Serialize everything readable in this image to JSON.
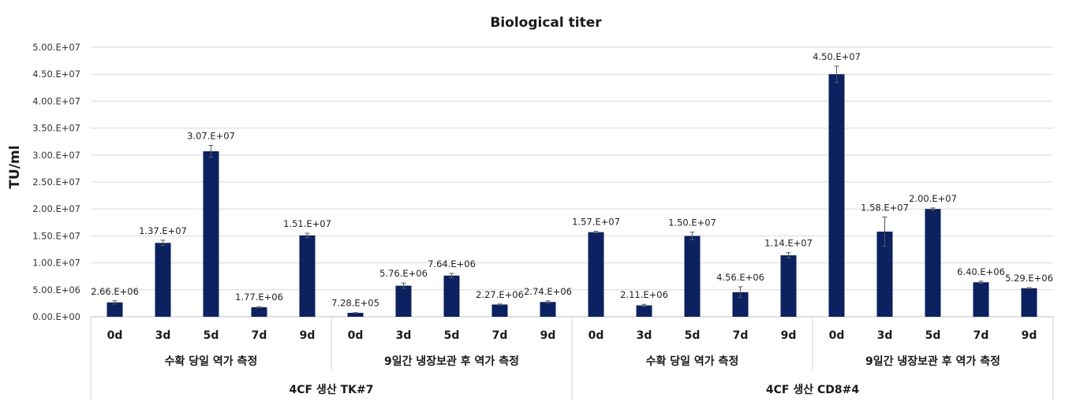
{
  "chart_data": {
    "type": "bar",
    "title": "Biological titer",
    "ylabel": "TU/ml",
    "ylim": [
      0,
      50000000
    ],
    "yticks": [
      {
        "value": 0,
        "label": "0.00.E+00"
      },
      {
        "value": 5000000,
        "label": "5.00.E+06"
      },
      {
        "value": 10000000,
        "label": "1.00.E+07"
      },
      {
        "value": 15000000,
        "label": "1.50.E+07"
      },
      {
        "value": 20000000,
        "label": "2.00.E+07"
      },
      {
        "value": 25000000,
        "label": "2.50.E+07"
      },
      {
        "value": 30000000,
        "label": "3.00.E+07"
      },
      {
        "value": 35000000,
        "label": "3.50.E+07"
      },
      {
        "value": 40000000,
        "label": "4.00.E+07"
      },
      {
        "value": 45000000,
        "label": "4.50.E+07"
      },
      {
        "value": 50000000,
        "label": "5.00.E+07"
      }
    ],
    "grid": true,
    "legend": "none",
    "bar_color": "#0b2160",
    "groups": [
      {
        "name": "4CF 생산 TK#7",
        "subgroups": [
          {
            "name": "수확 당일 역가 측정",
            "bars": [
              {
                "x": "0d",
                "value": 2660000,
                "label": "2.66.E+06",
                "err": 300000
              },
              {
                "x": "3d",
                "value": 13700000,
                "label": "1.37.E+07",
                "err": 500000
              },
              {
                "x": "5d",
                "value": 30700000,
                "label": "3.07.E+07",
                "err": 1100000
              },
              {
                "x": "7d",
                "value": 1770000,
                "label": "1.77.E+06",
                "err": 100000
              },
              {
                "x": "9d",
                "value": 15100000,
                "label": "1.51.E+07",
                "err": 400000
              }
            ]
          },
          {
            "name": "9일간 냉장보관 후 역가 측정",
            "bars": [
              {
                "x": "0d",
                "value": 728000,
                "label": "7.28.E+05",
                "err": 50000
              },
              {
                "x": "3d",
                "value": 5760000,
                "label": "5.76.E+06",
                "err": 500000
              },
              {
                "x": "5d",
                "value": 7640000,
                "label": "7.64.E+06",
                "err": 400000
              },
              {
                "x": "7d",
                "value": 2270000,
                "label": "2.27.E+06",
                "err": 100000
              },
              {
                "x": "9d",
                "value": 2740000,
                "label": "2.74.E+06",
                "err": 200000
              }
            ]
          }
        ]
      },
      {
        "name": "4CF 생산 CD8#4",
        "subgroups": [
          {
            "name": "수확 당일 역가 측정",
            "bars": [
              {
                "x": "0d",
                "value": 15700000,
                "label": "1.57.E+07",
                "err": 150000
              },
              {
                "x": "3d",
                "value": 2110000,
                "label": "2.11.E+06",
                "err": 200000
              },
              {
                "x": "5d",
                "value": 15000000,
                "label": "1.50.E+07",
                "err": 700000
              },
              {
                "x": "7d",
                "value": 4560000,
                "label": "4.56.E+06",
                "err": 1000000
              },
              {
                "x": "9d",
                "value": 11400000,
                "label": "1.14.E+07",
                "err": 500000
              }
            ]
          },
          {
            "name": "9일간 냉장보관 후 역가 측정",
            "bars": [
              {
                "x": "0d",
                "value": 45000000,
                "label": "4.50.E+07",
                "err": 1500000
              },
              {
                "x": "3d",
                "value": 15800000,
                "label": "1.58.E+07",
                "err": 2700000
              },
              {
                "x": "5d",
                "value": 20000000,
                "label": "2.00.E+07",
                "err": 200000
              },
              {
                "x": "7d",
                "value": 6400000,
                "label": "6.40.E+06",
                "err": 200000
              },
              {
                "x": "9d",
                "value": 5290000,
                "label": "5.29.E+06",
                "err": 100000
              }
            ]
          }
        ]
      }
    ]
  }
}
